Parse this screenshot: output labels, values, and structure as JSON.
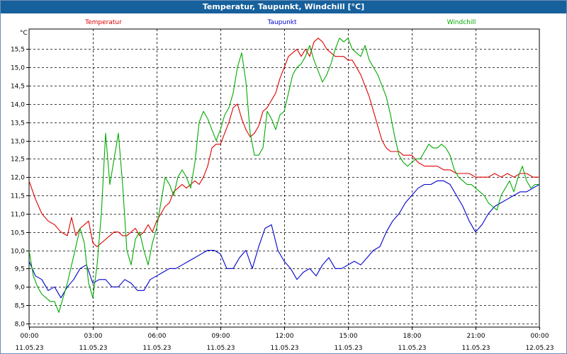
{
  "window": {
    "title": "Temperatur, Taupunkt, Windchill [°C]"
  },
  "chart_data": {
    "type": "line",
    "title": "Temperatur, Taupunkt, Windchill [°C]",
    "ylabel": "°C",
    "xlabel": "",
    "ylim": [
      7.9,
      16.05
    ],
    "xlim": [
      0,
      24
    ],
    "grid": true,
    "y_ticks": [
      "8,0",
      "8,5",
      "9,0",
      "9,5",
      "10,0",
      "10,5",
      "11,0",
      "11,5",
      "12,0",
      "12,5",
      "13,0",
      "13,5",
      "14,0",
      "14,5",
      "15,0",
      "15,5"
    ],
    "x_ticks": [
      {
        "time": "00:00",
        "date": "11.05.23"
      },
      {
        "time": "03:00",
        "date": "11.05.23"
      },
      {
        "time": "06:00",
        "date": "11.05.23"
      },
      {
        "time": "09:00",
        "date": "11.05.23"
      },
      {
        "time": "12:00",
        "date": "11.05.23"
      },
      {
        "time": "15:00",
        "date": "11.05.23"
      },
      {
        "time": "18:00",
        "date": "11.05.23"
      },
      {
        "time": "21:00",
        "date": "11.05.23"
      },
      {
        "time": "00:00",
        "date": "12.05.23"
      }
    ],
    "x_unit": "hours since 11.05.23 00:00",
    "series": [
      {
        "name": "Temperatur",
        "color": "#dd0000",
        "x": [
          0,
          0.3,
          0.6,
          0.9,
          1.2,
          1.5,
          1.8,
          2.0,
          2.2,
          2.4,
          2.6,
          2.8,
          3.0,
          3.2,
          3.4,
          3.6,
          3.8,
          4.0,
          4.2,
          4.4,
          4.6,
          4.8,
          5.0,
          5.2,
          5.4,
          5.6,
          5.8,
          6.0,
          6.2,
          6.4,
          6.6,
          6.8,
          7.0,
          7.2,
          7.4,
          7.6,
          7.8,
          8.0,
          8.2,
          8.4,
          8.6,
          8.8,
          9.0,
          9.2,
          9.4,
          9.6,
          9.8,
          10.0,
          10.2,
          10.4,
          10.6,
          10.8,
          11.0,
          11.2,
          11.4,
          11.6,
          11.8,
          12.0,
          12.2,
          12.4,
          12.6,
          12.8,
          13.0,
          13.2,
          13.4,
          13.6,
          13.8,
          14.0,
          14.2,
          14.4,
          14.6,
          14.8,
          15.0,
          15.2,
          15.4,
          15.6,
          15.8,
          16.0,
          16.2,
          16.4,
          16.6,
          16.8,
          17.0,
          17.2,
          17.4,
          17.6,
          17.8,
          18.0,
          18.3,
          18.6,
          18.9,
          19.2,
          19.5,
          19.8,
          20.1,
          20.4,
          20.7,
          21.0,
          21.3,
          21.6,
          21.9,
          22.2,
          22.5,
          22.8,
          23.1,
          23.4,
          23.7,
          24.0
        ],
        "values": [
          11.9,
          11.4,
          11.0,
          10.8,
          10.7,
          10.5,
          10.4,
          10.9,
          10.4,
          10.6,
          10.7,
          10.8,
          10.2,
          10.1,
          10.2,
          10.3,
          10.4,
          10.5,
          10.5,
          10.4,
          10.4,
          10.5,
          10.6,
          10.4,
          10.5,
          10.7,
          10.5,
          10.8,
          11.0,
          11.2,
          11.3,
          11.6,
          11.7,
          11.8,
          11.7,
          11.8,
          11.9,
          11.8,
          12.0,
          12.3,
          12.8,
          12.9,
          12.9,
          13.2,
          13.5,
          13.9,
          14.0,
          13.6,
          13.3,
          13.1,
          13.2,
          13.4,
          13.8,
          13.9,
          14.1,
          14.3,
          14.7,
          15.0,
          15.3,
          15.4,
          15.5,
          15.3,
          15.5,
          15.3,
          15.7,
          15.8,
          15.7,
          15.5,
          15.4,
          15.3,
          15.3,
          15.3,
          15.2,
          15.2,
          15.0,
          14.8,
          14.5,
          14.2,
          13.8,
          13.4,
          13.0,
          12.8,
          12.7,
          12.7,
          12.7,
          12.6,
          12.6,
          12.6,
          12.4,
          12.3,
          12.3,
          12.3,
          12.2,
          12.2,
          12.1,
          12.1,
          12.1,
          12.0,
          12.0,
          12.0,
          12.1,
          12.0,
          12.1,
          12.0,
          12.1,
          12.1,
          12.0,
          12.0
        ],
        "_x_check": "108 values"
      },
      {
        "name": "Taupunkt",
        "color": "#0000cc",
        "x": [
          0,
          0.3,
          0.6,
          0.9,
          1.2,
          1.5,
          1.8,
          2.1,
          2.4,
          2.7,
          3.0,
          3.3,
          3.6,
          3.9,
          4.2,
          4.5,
          4.8,
          5.1,
          5.4,
          5.7,
          6.0,
          6.3,
          6.6,
          6.9,
          7.2,
          7.5,
          7.8,
          8.1,
          8.4,
          8.7,
          9.0,
          9.3,
          9.6,
          9.9,
          10.2,
          10.5,
          10.8,
          11.1,
          11.4,
          11.7,
          12.0,
          12.3,
          12.6,
          12.9,
          13.2,
          13.5,
          13.8,
          14.1,
          14.4,
          14.7,
          15.0,
          15.3,
          15.6,
          15.9,
          16.2,
          16.5,
          16.8,
          17.1,
          17.4,
          17.7,
          18.0,
          18.3,
          18.6,
          18.9,
          19.2,
          19.5,
          19.8,
          20.1,
          20.4,
          20.7,
          21.0,
          21.3,
          21.6,
          21.9,
          22.2,
          22.5,
          22.8,
          23.1,
          23.4,
          23.7,
          24.0
        ],
        "values": [
          9.7,
          9.3,
          9.2,
          8.9,
          9.0,
          8.7,
          9.0,
          9.2,
          9.5,
          9.6,
          9.1,
          9.2,
          9.2,
          9.0,
          9.0,
          9.2,
          9.1,
          8.9,
          8.9,
          9.2,
          9.3,
          9.4,
          9.5,
          9.5,
          9.6,
          9.7,
          9.8,
          9.9,
          10.0,
          10.0,
          9.9,
          9.5,
          9.5,
          9.8,
          10.0,
          9.5,
          10.1,
          10.6,
          10.7,
          10.0,
          9.7,
          9.5,
          9.2,
          9.4,
          9.5,
          9.3,
          9.6,
          9.8,
          9.5,
          9.5,
          9.6,
          9.7,
          9.6,
          9.8,
          10.0,
          10.1,
          10.5,
          10.8,
          11.0,
          11.3,
          11.5,
          11.7,
          11.8,
          11.8,
          11.9,
          11.9,
          11.8,
          11.5,
          11.2,
          10.8,
          10.5,
          10.7,
          11.0,
          11.2,
          11.3,
          11.4,
          11.5,
          11.6,
          11.6,
          11.7,
          11.8
        ],
        "_x_check": "81 values"
      },
      {
        "name": "Windchill",
        "color": "#00aa00",
        "x": [
          0,
          0.2,
          0.4,
          0.6,
          0.8,
          1.0,
          1.2,
          1.4,
          1.6,
          1.8,
          2.0,
          2.2,
          2.4,
          2.6,
          2.8,
          3.0,
          3.2,
          3.4,
          3.6,
          3.8,
          4.0,
          4.2,
          4.4,
          4.6,
          4.8,
          5.0,
          5.2,
          5.4,
          5.6,
          5.8,
          6.0,
          6.2,
          6.4,
          6.6,
          6.8,
          7.0,
          7.2,
          7.4,
          7.6,
          7.8,
          8.0,
          8.2,
          8.4,
          8.6,
          8.8,
          9.0,
          9.2,
          9.4,
          9.6,
          9.8,
          10.0,
          10.2,
          10.4,
          10.6,
          10.8,
          11.0,
          11.2,
          11.4,
          11.6,
          11.8,
          12.0,
          12.2,
          12.4,
          12.6,
          12.8,
          13.0,
          13.2,
          13.4,
          13.6,
          13.8,
          14.0,
          14.2,
          14.4,
          14.6,
          14.8,
          15.0,
          15.2,
          15.4,
          15.6,
          15.8,
          16.0,
          16.2,
          16.4,
          16.6,
          16.8,
          17.0,
          17.2,
          17.4,
          17.6,
          17.8,
          18.0,
          18.2,
          18.4,
          18.6,
          18.8,
          19.0,
          19.2,
          19.4,
          19.6,
          19.8,
          20.0,
          20.2,
          20.4,
          20.6,
          20.8,
          21.0,
          21.2,
          21.4,
          21.6,
          21.8,
          22.0,
          22.2,
          22.4,
          22.6,
          22.8,
          23.0,
          23.2,
          23.4,
          23.6,
          23.8,
          24.0
        ],
        "values": [
          10.0,
          9.3,
          9.0,
          8.8,
          8.7,
          8.6,
          8.6,
          8.3,
          8.7,
          9.1,
          9.6,
          10.1,
          10.6,
          10.2,
          9.1,
          8.7,
          9.6,
          11.0,
          13.2,
          11.8,
          12.5,
          13.2,
          11.8,
          10.0,
          9.6,
          10.3,
          10.5,
          10.0,
          9.6,
          10.2,
          10.6,
          11.3,
          12.0,
          11.8,
          11.5,
          12.0,
          12.2,
          12.0,
          11.7,
          12.4,
          13.5,
          13.8,
          13.6,
          13.3,
          13.0,
          13.3,
          13.7,
          13.9,
          14.3,
          15.0,
          15.4,
          14.6,
          13.2,
          12.6,
          12.6,
          12.8,
          13.8,
          13.6,
          13.3,
          13.7,
          13.8,
          14.3,
          14.8,
          15.0,
          15.1,
          15.3,
          15.6,
          15.2,
          14.9,
          14.6,
          14.8,
          15.1,
          15.5,
          15.8,
          15.7,
          15.8,
          15.5,
          15.4,
          15.3,
          15.6,
          15.2,
          15.0,
          14.8,
          14.5,
          14.2,
          13.7,
          13.1,
          12.6,
          12.4,
          12.3,
          12.4,
          12.5,
          12.5,
          12.7,
          12.9,
          12.8,
          12.8,
          12.9,
          12.8,
          12.6,
          12.2,
          12.0,
          11.9,
          11.8,
          11.8,
          11.7,
          11.6,
          11.5,
          11.3,
          11.2,
          11.1,
          11.5,
          11.7,
          11.9,
          11.6,
          12.0,
          12.3,
          11.9,
          11.7,
          11.8,
          11.8
        ],
        "_x_check": "121 values"
      }
    ]
  }
}
